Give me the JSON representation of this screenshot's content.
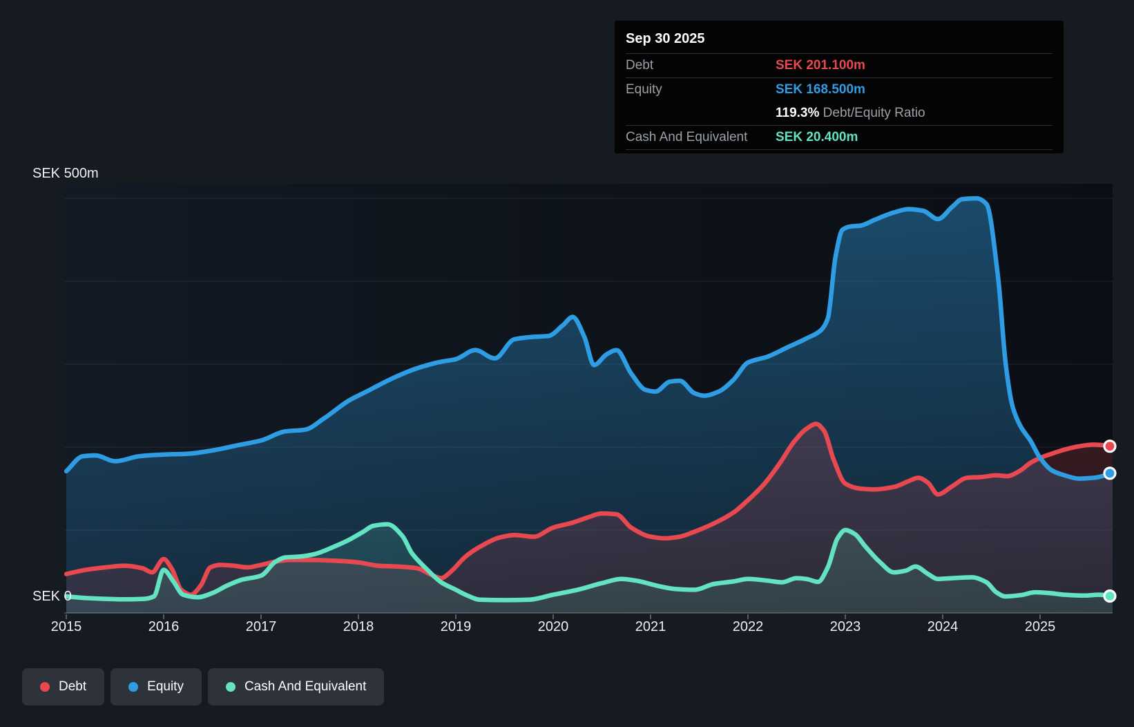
{
  "tooltip": {
    "date": "Sep 30 2025",
    "debt_label": "Debt",
    "debt_value": "SEK 201.100m",
    "equity_label": "Equity",
    "equity_value": "SEK 168.500m",
    "ratio_percent": "119.3%",
    "ratio_label": " Debt/Equity Ratio",
    "cash_label": "Cash And Equivalent",
    "cash_value": "SEK 20.400m"
  },
  "axis": {
    "y_max_label": "SEK 500m",
    "y_zero_label": "SEK 0",
    "years": [
      "2015",
      "2016",
      "2017",
      "2018",
      "2019",
      "2020",
      "2021",
      "2022",
      "2023",
      "2024",
      "2025"
    ]
  },
  "legend": {
    "items": [
      {
        "label": "Debt",
        "color": "#e8484f"
      },
      {
        "label": "Equity",
        "color": "#2e9de4"
      },
      {
        "label": "Cash And Equivalent",
        "color": "#63e3c1"
      }
    ]
  },
  "colors": {
    "debt": "#e8484f",
    "equity": "#2e9de4",
    "cash": "#63e3c1",
    "page_bg": "#161b22",
    "tooltip_bg": "#040404",
    "legend_bg": "#2e333b",
    "grid": "rgba(255,255,255,0.09)",
    "axis_line": "rgba(255,255,255,0.22)"
  },
  "chart_data": {
    "type": "area",
    "title": "",
    "xlabel": "",
    "ylabel": "SEK millions",
    "x_unit": "decimal_year",
    "xlim": [
      2015,
      2025.83
    ],
    "ylim": [
      0,
      500
    ],
    "y_gridlines": [
      0,
      100,
      200,
      300,
      400,
      500
    ],
    "x_ticks": [
      2015,
      2016,
      2017,
      2018,
      2019,
      2020,
      2021,
      2022,
      2023,
      2024,
      2025
    ],
    "grid": true,
    "legend_position": "bottom-left",
    "last_point_date": "Sep 30 2025",
    "series": [
      {
        "name": "Debt",
        "color": "#e8484f",
        "last_value": 201.1,
        "points": [
          [
            2015.0,
            47
          ],
          [
            2015.2,
            52
          ],
          [
            2015.4,
            55
          ],
          [
            2015.6,
            57
          ],
          [
            2015.78,
            54
          ],
          [
            2015.88,
            49
          ],
          [
            2016.0,
            65
          ],
          [
            2016.08,
            54
          ],
          [
            2016.18,
            28
          ],
          [
            2016.28,
            22
          ],
          [
            2016.38,
            33
          ],
          [
            2016.48,
            55
          ],
          [
            2016.58,
            58
          ],
          [
            2016.72,
            57
          ],
          [
            2016.86,
            55
          ],
          [
            2017.0,
            58
          ],
          [
            2017.15,
            62
          ],
          [
            2017.3,
            64
          ],
          [
            2017.5,
            64
          ],
          [
            2017.75,
            63
          ],
          [
            2018.0,
            61
          ],
          [
            2018.2,
            57
          ],
          [
            2018.4,
            56
          ],
          [
            2018.6,
            54
          ],
          [
            2018.75,
            46
          ],
          [
            2018.85,
            42
          ],
          [
            2018.95,
            50
          ],
          [
            2019.1,
            68
          ],
          [
            2019.25,
            80
          ],
          [
            2019.45,
            91
          ],
          [
            2019.6,
            94
          ],
          [
            2019.8,
            92
          ],
          [
            2020.0,
            103
          ],
          [
            2020.2,
            109
          ],
          [
            2020.35,
            115
          ],
          [
            2020.5,
            120
          ],
          [
            2020.65,
            119
          ],
          [
            2020.8,
            103
          ],
          [
            2021.0,
            92
          ],
          [
            2021.15,
            90
          ],
          [
            2021.3,
            92
          ],
          [
            2021.45,
            98
          ],
          [
            2021.65,
            108
          ],
          [
            2021.85,
            121
          ],
          [
            2022.0,
            136
          ],
          [
            2022.17,
            156
          ],
          [
            2022.33,
            181
          ],
          [
            2022.47,
            206
          ],
          [
            2022.6,
            222
          ],
          [
            2022.7,
            228
          ],
          [
            2022.78,
            220
          ],
          [
            2022.88,
            185
          ],
          [
            2023.0,
            156
          ],
          [
            2023.15,
            150
          ],
          [
            2023.3,
            149
          ],
          [
            2023.5,
            152
          ],
          [
            2023.65,
            159
          ],
          [
            2023.75,
            163
          ],
          [
            2023.85,
            157
          ],
          [
            2023.95,
            143
          ],
          [
            2024.1,
            153
          ],
          [
            2024.25,
            163
          ],
          [
            2024.4,
            164
          ],
          [
            2024.55,
            166
          ],
          [
            2024.66,
            165
          ],
          [
            2024.8,
            172
          ],
          [
            2024.9,
            181
          ],
          [
            2025.0,
            187
          ],
          [
            2025.12,
            192
          ],
          [
            2025.25,
            197
          ],
          [
            2025.4,
            201
          ],
          [
            2025.55,
            203
          ],
          [
            2025.75,
            201.1
          ]
        ]
      },
      {
        "name": "Equity",
        "color": "#2e9de4",
        "last_value": 168.5,
        "points": [
          [
            2015.0,
            171
          ],
          [
            2015.17,
            189
          ],
          [
            2015.3,
            190
          ],
          [
            2015.5,
            183
          ],
          [
            2015.75,
            189
          ],
          [
            2016.0,
            191
          ],
          [
            2016.25,
            192
          ],
          [
            2016.5,
            196
          ],
          [
            2016.75,
            202
          ],
          [
            2017.0,
            208
          ],
          [
            2017.25,
            219
          ],
          [
            2017.45,
            221
          ],
          [
            2017.65,
            235
          ],
          [
            2017.9,
            256
          ],
          [
            2018.1,
            268
          ],
          [
            2018.35,
            283
          ],
          [
            2018.6,
            295
          ],
          [
            2018.85,
            303
          ],
          [
            2019.0,
            306
          ],
          [
            2019.2,
            317
          ],
          [
            2019.4,
            307
          ],
          [
            2019.6,
            330
          ],
          [
            2019.8,
            333
          ],
          [
            2019.95,
            334
          ],
          [
            2020.1,
            347
          ],
          [
            2020.2,
            357
          ],
          [
            2020.32,
            333
          ],
          [
            2020.42,
            299
          ],
          [
            2020.55,
            312
          ],
          [
            2020.65,
            317
          ],
          [
            2020.8,
            289
          ],
          [
            2020.95,
            269
          ],
          [
            2021.05,
            267
          ],
          [
            2021.2,
            279
          ],
          [
            2021.3,
            280
          ],
          [
            2021.45,
            265
          ],
          [
            2021.55,
            262
          ],
          [
            2021.7,
            267
          ],
          [
            2021.85,
            281
          ],
          [
            2022.0,
            302
          ],
          [
            2022.2,
            309
          ],
          [
            2022.4,
            320
          ],
          [
            2022.6,
            331
          ],
          [
            2022.75,
            341
          ],
          [
            2022.82,
            355
          ],
          [
            2022.9,
            430
          ],
          [
            2022.97,
            462
          ],
          [
            2023.05,
            466
          ],
          [
            2023.15,
            467
          ],
          [
            2023.3,
            474
          ],
          [
            2023.5,
            483
          ],
          [
            2023.65,
            487
          ],
          [
            2023.8,
            485
          ],
          [
            2023.95,
            475
          ],
          [
            2024.1,
            490
          ],
          [
            2024.2,
            499
          ],
          [
            2024.35,
            500
          ],
          [
            2024.45,
            493
          ],
          [
            2024.57,
            403
          ],
          [
            2024.65,
            297
          ],
          [
            2024.72,
            248
          ],
          [
            2024.8,
            225
          ],
          [
            2024.9,
            208
          ],
          [
            2025.0,
            187
          ],
          [
            2025.12,
            172
          ],
          [
            2025.25,
            166
          ],
          [
            2025.4,
            162
          ],
          [
            2025.55,
            163
          ],
          [
            2025.75,
            168.5
          ]
        ]
      },
      {
        "name": "Cash And Equivalent",
        "color": "#63e3c1",
        "last_value": 20.4,
        "points": [
          [
            2015.0,
            20
          ],
          [
            2015.2,
            18
          ],
          [
            2015.4,
            17
          ],
          [
            2015.6,
            16.5
          ],
          [
            2015.8,
            17
          ],
          [
            2015.9,
            20
          ],
          [
            2016.0,
            52
          ],
          [
            2016.1,
            38
          ],
          [
            2016.2,
            22
          ],
          [
            2016.35,
            19
          ],
          [
            2016.5,
            24
          ],
          [
            2016.65,
            33
          ],
          [
            2016.8,
            40
          ],
          [
            2017.0,
            45
          ],
          [
            2017.15,
            62
          ],
          [
            2017.25,
            67
          ],
          [
            2017.4,
            68
          ],
          [
            2017.55,
            71
          ],
          [
            2017.75,
            80
          ],
          [
            2017.9,
            88
          ],
          [
            2018.05,
            98
          ],
          [
            2018.15,
            105
          ],
          [
            2018.3,
            107
          ],
          [
            2018.45,
            93
          ],
          [
            2018.55,
            72
          ],
          [
            2018.7,
            53
          ],
          [
            2018.85,
            37
          ],
          [
            2019.0,
            28
          ],
          [
            2019.1,
            22
          ],
          [
            2019.25,
            16
          ],
          [
            2019.5,
            15.5
          ],
          [
            2019.75,
            16
          ],
          [
            2020.0,
            22
          ],
          [
            2020.25,
            28
          ],
          [
            2020.5,
            36
          ],
          [
            2020.7,
            41
          ],
          [
            2020.85,
            39
          ],
          [
            2021.1,
            32
          ],
          [
            2021.25,
            29
          ],
          [
            2021.45,
            28
          ],
          [
            2021.65,
            35
          ],
          [
            2021.85,
            38
          ],
          [
            2022.0,
            41
          ],
          [
            2022.2,
            39
          ],
          [
            2022.35,
            37
          ],
          [
            2022.5,
            42
          ],
          [
            2022.6,
            41
          ],
          [
            2022.72,
            37.5
          ],
          [
            2022.82,
            55
          ],
          [
            2022.92,
            90
          ],
          [
            2023.0,
            100
          ],
          [
            2023.1,
            95
          ],
          [
            2023.2,
            81
          ],
          [
            2023.35,
            62
          ],
          [
            2023.5,
            49
          ],
          [
            2023.62,
            51
          ],
          [
            2023.72,
            56
          ],
          [
            2023.85,
            47
          ],
          [
            2023.95,
            41
          ],
          [
            2024.1,
            42
          ],
          [
            2024.3,
            43
          ],
          [
            2024.45,
            37
          ],
          [
            2024.55,
            25
          ],
          [
            2024.64,
            20
          ],
          [
            2024.8,
            21.5
          ],
          [
            2024.95,
            25
          ],
          [
            2025.1,
            24
          ],
          [
            2025.25,
            22
          ],
          [
            2025.45,
            21
          ],
          [
            2025.6,
            22
          ],
          [
            2025.75,
            20.4
          ]
        ]
      }
    ]
  }
}
